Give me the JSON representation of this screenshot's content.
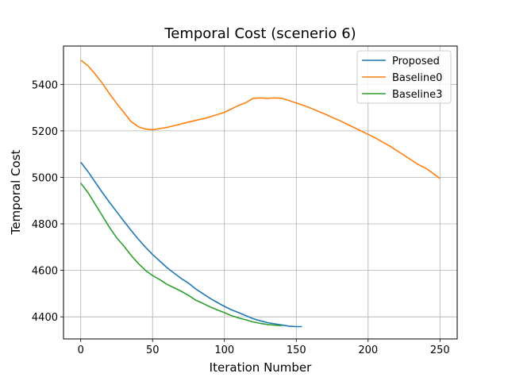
{
  "chart_data": {
    "type": "line",
    "title": "Temporal Cost (scenerio 6)",
    "xlabel": "Iteration Number",
    "ylabel": "Temporal Cost",
    "xlim": [
      -12,
      262
    ],
    "ylim": [
      4305,
      5565
    ],
    "xticks": [
      0,
      50,
      100,
      150,
      200,
      250
    ],
    "yticks": [
      4400,
      4600,
      4800,
      5000,
      5200,
      5400
    ],
    "grid": true,
    "legend_position": "top-right",
    "series": [
      {
        "name": "Proposed",
        "color": "#1f77b4",
        "x": [
          0,
          5,
          10,
          15,
          20,
          25,
          30,
          35,
          40,
          45,
          50,
          55,
          60,
          65,
          70,
          75,
          80,
          85,
          90,
          95,
          100,
          105,
          110,
          115,
          120,
          125,
          130,
          135,
          140,
          145,
          150,
          154
        ],
        "y": [
          5065,
          5025,
          4980,
          4935,
          4893,
          4852,
          4812,
          4772,
          4735,
          4700,
          4668,
          4640,
          4612,
          4588,
          4565,
          4545,
          4520,
          4500,
          4480,
          4462,
          4445,
          4430,
          4418,
          4405,
          4392,
          4383,
          4375,
          4370,
          4365,
          4360,
          4358,
          4358
        ]
      },
      {
        "name": "Baseline0",
        "color": "#ff7f0e",
        "x": [
          0,
          5,
          10,
          15,
          20,
          25,
          30,
          35,
          40,
          45,
          50,
          55,
          60,
          65,
          70,
          75,
          80,
          85,
          90,
          95,
          100,
          105,
          110,
          115,
          120,
          125,
          130,
          135,
          140,
          145,
          150,
          155,
          160,
          165,
          170,
          175,
          180,
          185,
          190,
          195,
          200,
          205,
          210,
          215,
          220,
          225,
          230,
          235,
          240,
          245,
          250
        ],
        "y": [
          5505,
          5480,
          5445,
          5405,
          5360,
          5318,
          5280,
          5240,
          5218,
          5208,
          5205,
          5210,
          5215,
          5222,
          5230,
          5238,
          5245,
          5252,
          5260,
          5270,
          5280,
          5295,
          5310,
          5322,
          5340,
          5342,
          5340,
          5342,
          5340,
          5330,
          5320,
          5310,
          5298,
          5285,
          5272,
          5258,
          5245,
          5230,
          5215,
          5200,
          5185,
          5170,
          5152,
          5135,
          5115,
          5095,
          5075,
          5055,
          5040,
          5018,
          4995
        ]
      },
      {
        "name": "Baseline3",
        "color": "#2ca02c",
        "x": [
          0,
          5,
          10,
          15,
          20,
          25,
          30,
          35,
          40,
          45,
          50,
          55,
          60,
          65,
          70,
          75,
          80,
          85,
          90,
          95,
          100,
          105,
          110,
          115,
          120,
          125,
          130,
          135,
          140
        ],
        "y": [
          4975,
          4935,
          4885,
          4835,
          4785,
          4740,
          4705,
          4665,
          4630,
          4600,
          4578,
          4560,
          4540,
          4525,
          4510,
          4492,
          4472,
          4458,
          4443,
          4430,
          4418,
          4405,
          4395,
          4387,
          4378,
          4372,
          4367,
          4364,
          4362
        ]
      }
    ]
  }
}
